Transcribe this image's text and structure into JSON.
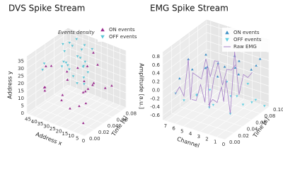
{
  "chart_data": [
    {
      "type": "scatter3d",
      "title": "DVS Spike Stream",
      "annotation": "Events density",
      "xlabel": "Address x",
      "ylabel": "Address y",
      "zlabel": "Time [s]",
      "xlim": [
        0,
        47
      ],
      "ylim": [
        0,
        38
      ],
      "zlim": [
        0,
        0.09
      ],
      "xticks": [
        0,
        5,
        10,
        15,
        20,
        25,
        30,
        35,
        40,
        45
      ],
      "yticks": [
        0,
        5,
        10,
        15,
        20,
        25,
        30,
        35
      ],
      "zticks": [
        {
          "value": 0,
          "label": "0.00"
        },
        {
          "value": 0.02,
          "label": "0.02"
        },
        {
          "value": 0.04,
          "label": "0.04"
        },
        {
          "value": 0.06,
          "label": "0.06"
        },
        {
          "value": 0.08,
          "label": "0.08"
        }
      ],
      "grid": true,
      "series": [
        {
          "name": "ON events",
          "color": "#9b2c8f",
          "marker": "up",
          "x": [
            5,
            12,
            20,
            30,
            38,
            42,
            8,
            15,
            25,
            33,
            40,
            3,
            18,
            27,
            36,
            10,
            22,
            44,
            6,
            31,
            14,
            28,
            39,
            2,
            19
          ],
          "z": [
            0.01,
            0.02,
            0.005,
            0.03,
            0.015,
            0.04,
            0.02,
            0.06,
            0.035,
            0.05,
            0.07,
            0.025,
            0.045,
            0.08,
            0.01,
            0.055,
            0.065,
            0.03,
            0.075,
            0.085,
            0.04,
            0.06,
            0.02,
            0.05,
            0.07
          ],
          "values": [
            5,
            12,
            20,
            8,
            15,
            25,
            30,
            18,
            3,
            22,
            10,
            28,
            14,
            6,
            19,
            33,
            26,
            12,
            16,
            2,
            9,
            24,
            30,
            21,
            35
          ]
        },
        {
          "name": "OFF events",
          "color": "#5cc6d6",
          "marker": "down",
          "x": [
            10,
            15,
            20,
            25,
            30,
            35,
            40,
            12,
            18,
            24,
            30,
            36,
            42,
            8,
            14,
            22,
            28,
            34,
            40,
            16,
            26,
            32,
            20,
            38,
            44
          ],
          "z": [
            0.01,
            0.015,
            0.02,
            0.03,
            0.04,
            0.05,
            0.06,
            0.03,
            0.045,
            0.055,
            0.065,
            0.07,
            0.08,
            0.02,
            0.035,
            0.06,
            0.075,
            0.085,
            0.09,
            0.05,
            0.02,
            0.04,
            0.07,
            0.01,
            0.03
          ],
          "values": [
            30,
            32,
            34,
            33,
            31,
            35,
            36,
            29,
            31,
            33,
            30,
            34,
            32,
            28,
            35,
            30,
            36,
            29,
            33,
            27,
            34,
            31,
            37,
            30,
            28
          ]
        }
      ]
    },
    {
      "type": "scatter3d",
      "title": "EMG Spike Stream",
      "xlabel": "Channel",
      "ylabel": "Amplitude [a.u.]",
      "zlabel": "Time [s]",
      "xlim": [
        0,
        7.5
      ],
      "ylim": [
        -0.7,
        0.9
      ],
      "zlim": [
        0,
        0.1
      ],
      "xticks": [
        0,
        1,
        2,
        3,
        4,
        5,
        6,
        7
      ],
      "yticks": [
        -0.6,
        -0.4,
        -0.2,
        {
          "value": 0,
          "label": "0.0"
        },
        0.2,
        0.4,
        0.6,
        0.8
      ],
      "zticks": [
        {
          "value": 0,
          "label": "0.00"
        },
        {
          "value": 0.02,
          "label": "0.02"
        },
        {
          "value": 0.04,
          "label": "0.04"
        },
        {
          "value": 0.06,
          "label": "0.06"
        },
        {
          "value": 0.08,
          "label": "0.08"
        },
        {
          "value": 0.1,
          "label": "0.10"
        }
      ],
      "grid": true,
      "series": [
        {
          "name": "ON events",
          "color": "#3d8fc6",
          "marker": "up",
          "x": [
            6,
            6,
            6,
            5,
            5,
            4,
            4,
            4,
            3,
            3,
            2,
            2,
            1,
            1,
            0,
            0
          ],
          "z": [
            0.01,
            0.03,
            0.07,
            0.02,
            0.05,
            0.035,
            0.06,
            0.075,
            0.04,
            0.08,
            0.06,
            0.07,
            0.05,
            0.09,
            0.06,
            0.08
          ],
          "values": [
            0.3,
            0.6,
            0.4,
            0.5,
            0.3,
            0.5,
            0.4,
            0.2,
            0.3,
            0.2,
            0.7,
            0.5,
            0.4,
            0.3,
            0.5,
            0.6
          ]
        },
        {
          "name": "OFF events",
          "color": "#62d0e2",
          "marker": "down",
          "x": [
            6,
            6,
            5,
            5,
            4,
            4,
            3,
            3,
            2,
            2,
            2,
            1,
            1,
            0,
            0,
            7
          ],
          "z": [
            0.02,
            0.05,
            0.03,
            0.06,
            0.04,
            0.08,
            0.03,
            0.07,
            0.05,
            0.065,
            0.09,
            0.06,
            0.08,
            0.07,
            0.09,
            0.02
          ],
          "values": [
            -0.3,
            -0.4,
            -0.2,
            -0.3,
            -0.5,
            -0.2,
            -0.3,
            -0.4,
            -0.6,
            -0.3,
            -0.2,
            -0.4,
            -0.5,
            -0.3,
            -0.6,
            -0.2
          ]
        },
        {
          "name": "Raw EMG",
          "color": "#a57fc8",
          "marker": "line",
          "x": [
            6,
            6,
            6,
            6,
            6,
            6,
            6,
            6,
            6,
            6,
            6,
            6,
            null,
            4,
            4,
            4,
            4,
            4,
            4,
            4,
            4,
            4,
            4,
            4,
            4,
            null,
            2,
            2,
            2,
            2,
            2,
            2,
            2,
            2,
            2,
            2,
            2,
            2
          ],
          "z": [
            0,
            0.01,
            0.02,
            0.03,
            0.035,
            0.04,
            0.05,
            0.06,
            0.07,
            0.08,
            0.09,
            0.1,
            null,
            0,
            0.01,
            0.02,
            0.03,
            0.035,
            0.04,
            0.05,
            0.06,
            0.07,
            0.08,
            0.09,
            0.1,
            null,
            0,
            0.01,
            0.02,
            0.03,
            0.035,
            0.04,
            0.05,
            0.06,
            0.07,
            0.08,
            0.09,
            0.1
          ],
          "values": [
            0,
            0.1,
            -0.2,
            0.6,
            -0.4,
            0.2,
            0.05,
            -0.1,
            0.3,
            -0.2,
            0.1,
            0,
            null,
            0,
            -0.1,
            0.2,
            -0.3,
            0.5,
            -0.5,
            0.1,
            0.4,
            -0.2,
            0.1,
            0,
            0.05,
            null,
            0,
            0.05,
            -0.1,
            0.2,
            -0.2,
            0.3,
            -0.6,
            0.8,
            -0.3,
            0.1,
            -0.05,
            0
          ]
        }
      ]
    }
  ]
}
